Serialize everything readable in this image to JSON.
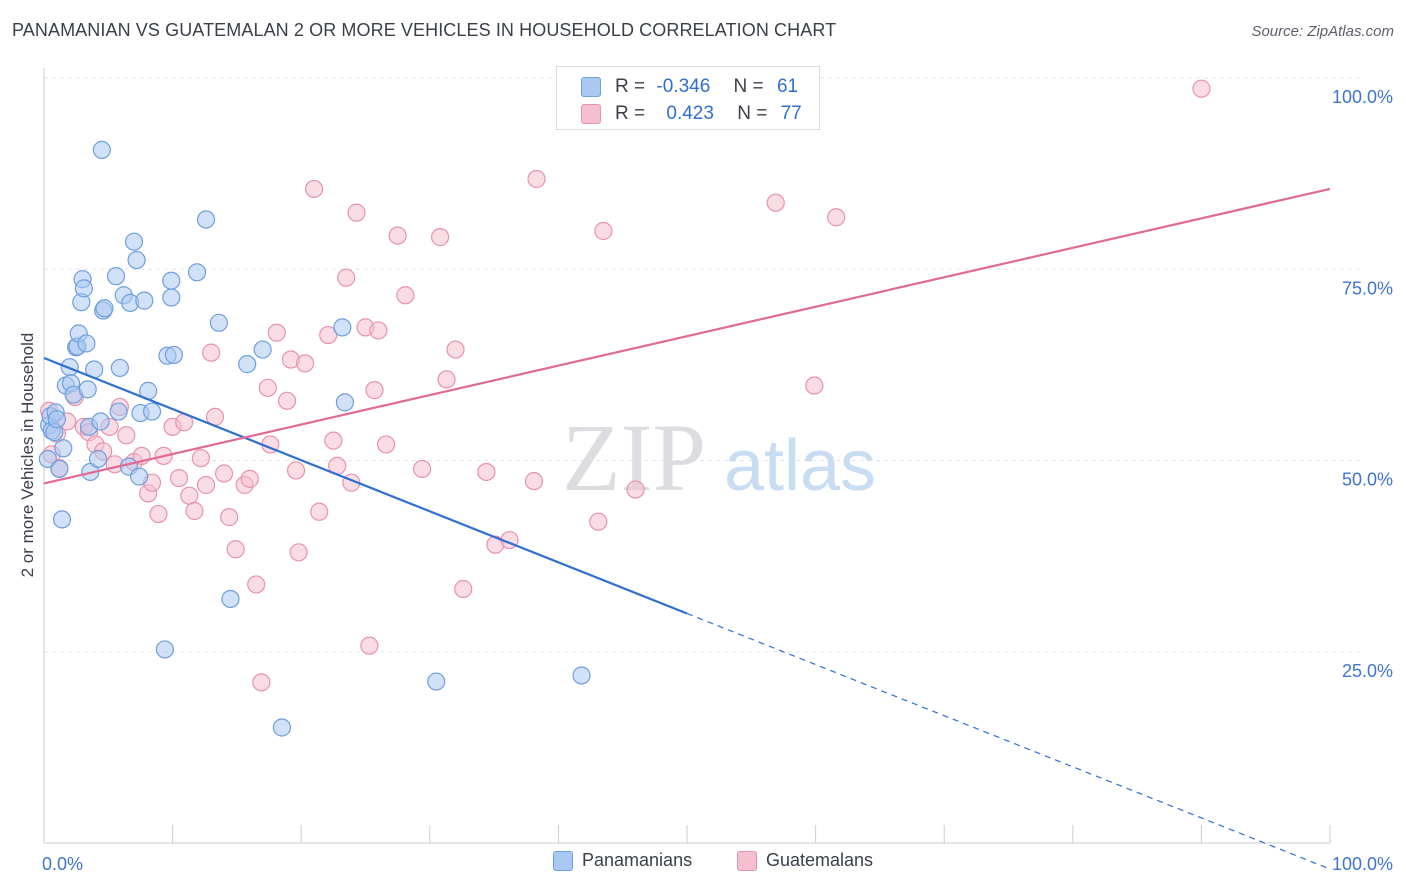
{
  "title": "PANAMANIAN VS GUATEMALAN 2 OR MORE VEHICLES IN HOUSEHOLD CORRELATION CHART",
  "source": "Source: ZipAtlas.com",
  "watermark": {
    "zip": "ZIP",
    "atlas": "atlas"
  },
  "colors": {
    "blue_fill": "#a9c9f2",
    "blue_stroke": "#6f9fdc",
    "blue_line": "#2e6fd1",
    "pink_fill": "#f6bfd0",
    "pink_stroke": "#e892ad",
    "pink_line": "#e06a93",
    "tick_text": "#3f74cf",
    "grid": "#e3e5ea"
  },
  "stats": {
    "rows": [
      {
        "r_label": "R =",
        "r_value": "-0.346",
        "n_label": "N =",
        "n_value": "61"
      },
      {
        "r_label": "R =",
        "r_value": "0.423",
        "n_label": "N =",
        "n_value": "77"
      }
    ]
  },
  "legend": [
    {
      "label": "Panamanians"
    },
    {
      "label": "Guatemalans"
    }
  ],
  "chart_data": {
    "type": "scatter",
    "xlabel": "",
    "ylabel": "2 or more Vehicles in Household",
    "xlim": [
      0,
      100
    ],
    "ylim": [
      0,
      100
    ],
    "x_tick_labels": [
      {
        "value": 0,
        "label": "0.0%"
      },
      {
        "value": 100,
        "label": "100.0%"
      }
    ],
    "y_tick_labels": [
      {
        "value": 25,
        "label": "25.0%"
      },
      {
        "value": 50,
        "label": "50.0%"
      },
      {
        "value": 75,
        "label": "75.0%"
      },
      {
        "value": 100,
        "label": "100.0%"
      }
    ],
    "grid": "horizontal dashed",
    "legend_position": "bottom-center",
    "series": [
      {
        "name": "Panamanians",
        "trend": {
          "x0": 0,
          "y0": 63.4,
          "x1": 50,
          "y1": 30.0,
          "dashed_to_x": 100,
          "dashed_to_y": -3.4
        },
        "points": [
          [
            0.3,
            50.2
          ],
          [
            0.4,
            54.6
          ],
          [
            0.5,
            55.8
          ],
          [
            0.6,
            53.9
          ],
          [
            0.8,
            53.7
          ],
          [
            0.9,
            56.3
          ],
          [
            1.0,
            55.4
          ],
          [
            1.2,
            48.9
          ],
          [
            1.4,
            42.3
          ],
          [
            1.5,
            51.6
          ],
          [
            1.7,
            59.8
          ],
          [
            2.0,
            62.2
          ],
          [
            2.1,
            60.1
          ],
          [
            2.3,
            58.6
          ],
          [
            2.5,
            64.8
          ],
          [
            2.6,
            64.9
          ],
          [
            2.7,
            66.6
          ],
          [
            2.9,
            70.7
          ],
          [
            3.0,
            73.7
          ],
          [
            3.1,
            72.5
          ],
          [
            3.3,
            65.3
          ],
          [
            3.4,
            59.3
          ],
          [
            3.5,
            54.4
          ],
          [
            3.6,
            48.5
          ],
          [
            3.9,
            61.9
          ],
          [
            4.2,
            50.2
          ],
          [
            4.4,
            55.1
          ],
          [
            4.5,
            90.6
          ],
          [
            4.6,
            69.6
          ],
          [
            4.7,
            69.9
          ],
          [
            5.6,
            74.1
          ],
          [
            5.8,
            56.4
          ],
          [
            5.9,
            62.1
          ],
          [
            6.2,
            71.6
          ],
          [
            6.6,
            49.2
          ],
          [
            6.7,
            70.6
          ],
          [
            7.0,
            78.6
          ],
          [
            7.2,
            76.2
          ],
          [
            7.4,
            47.9
          ],
          [
            7.5,
            56.2
          ],
          [
            7.8,
            70.9
          ],
          [
            8.1,
            59.1
          ],
          [
            8.4,
            56.4
          ],
          [
            9.4,
            25.3
          ],
          [
            9.6,
            63.7
          ],
          [
            9.9,
            73.5
          ],
          [
            9.9,
            71.3
          ],
          [
            10.1,
            63.8
          ],
          [
            11.9,
            74.6
          ],
          [
            12.6,
            81.5
          ],
          [
            13.6,
            68.0
          ],
          [
            14.5,
            31.9
          ],
          [
            15.8,
            62.6
          ],
          [
            17.0,
            64.5
          ],
          [
            18.5,
            15.1
          ],
          [
            23.2,
            67.4
          ],
          [
            23.4,
            57.6
          ],
          [
            30.5,
            21.1
          ],
          [
            41.8,
            21.9
          ]
        ]
      },
      {
        "name": "Guatemalans",
        "trend": {
          "x0": 0,
          "y0": 47.0,
          "x1": 100,
          "y1": 85.5
        },
        "points": [
          [
            0.4,
            56.5
          ],
          [
            0.6,
            50.8
          ],
          [
            1.0,
            53.5
          ],
          [
            1.2,
            49.0
          ],
          [
            1.8,
            55.1
          ],
          [
            2.4,
            58.3
          ],
          [
            3.1,
            54.4
          ],
          [
            3.5,
            53.7
          ],
          [
            4.0,
            52.1
          ],
          [
            4.6,
            51.2
          ],
          [
            5.1,
            54.4
          ],
          [
            5.5,
            49.5
          ],
          [
            5.9,
            57.0
          ],
          [
            6.4,
            53.3
          ],
          [
            7.0,
            49.8
          ],
          [
            7.6,
            50.6
          ],
          [
            8.1,
            45.7
          ],
          [
            8.4,
            47.1
          ],
          [
            8.9,
            43.0
          ],
          [
            9.3,
            50.6
          ],
          [
            10.0,
            54.4
          ],
          [
            10.5,
            47.7
          ],
          [
            10.9,
            55.0
          ],
          [
            11.3,
            45.4
          ],
          [
            11.7,
            43.4
          ],
          [
            12.2,
            50.3
          ],
          [
            12.6,
            46.8
          ],
          [
            13.0,
            64.1
          ],
          [
            13.3,
            55.7
          ],
          [
            14.0,
            48.3
          ],
          [
            14.4,
            42.6
          ],
          [
            14.9,
            38.4
          ],
          [
            15.6,
            46.8
          ],
          [
            16.0,
            47.6
          ],
          [
            16.5,
            33.8
          ],
          [
            16.9,
            21.0
          ],
          [
            17.4,
            59.5
          ],
          [
            17.6,
            52.1
          ],
          [
            18.1,
            66.7
          ],
          [
            18.9,
            57.8
          ],
          [
            19.2,
            63.2
          ],
          [
            19.6,
            48.7
          ],
          [
            19.8,
            38.0
          ],
          [
            20.3,
            62.7
          ],
          [
            21.0,
            85.5
          ],
          [
            21.4,
            43.3
          ],
          [
            22.1,
            66.4
          ],
          [
            22.5,
            52.6
          ],
          [
            22.8,
            49.3
          ],
          [
            23.5,
            73.9
          ],
          [
            23.9,
            47.1
          ],
          [
            24.3,
            82.4
          ],
          [
            25.0,
            67.4
          ],
          [
            25.3,
            25.8
          ],
          [
            25.7,
            59.2
          ],
          [
            26.0,
            67.0
          ],
          [
            26.6,
            52.1
          ],
          [
            27.5,
            79.4
          ],
          [
            28.1,
            71.6
          ],
          [
            29.4,
            48.9
          ],
          [
            30.8,
            79.2
          ],
          [
            31.3,
            60.6
          ],
          [
            32.0,
            64.5
          ],
          [
            32.6,
            33.2
          ],
          [
            34.4,
            48.5
          ],
          [
            35.1,
            39.0
          ],
          [
            36.2,
            39.6
          ],
          [
            38.1,
            47.3
          ],
          [
            38.3,
            86.8
          ],
          [
            43.1,
            42.0
          ],
          [
            43.5,
            80.0
          ],
          [
            46.0,
            46.2
          ],
          [
            56.9,
            83.7
          ],
          [
            59.9,
            59.8
          ],
          [
            61.6,
            81.8
          ],
          [
            90.0,
            98.6
          ]
        ]
      }
    ]
  }
}
